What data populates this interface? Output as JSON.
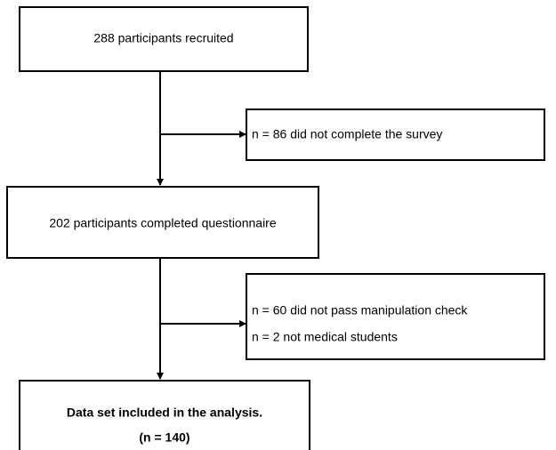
{
  "nodes": [
    {
      "label": "288 participants recruited"
    },
    {
      "lines": [
        "n = 86 did not complete the survey"
      ]
    },
    {
      "label": "202 participants completed questionnaire"
    },
    {
      "lines": [
        "n = 60 did not pass manipulation check",
        "n = 2 not medical students"
      ]
    },
    {
      "lines": [
        "Data set included in the analysis.",
        "(n = 140)"
      ]
    }
  ]
}
